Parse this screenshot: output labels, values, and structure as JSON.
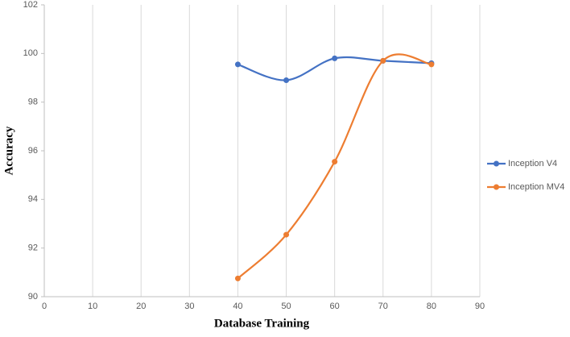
{
  "chart_data": {
    "type": "line",
    "x": [
      40,
      50,
      60,
      70,
      80
    ],
    "series": [
      {
        "name": "Inception V4",
        "color": "#4472c4",
        "values": [
          99.55,
          98.9,
          99.8,
          99.7,
          99.6
        ]
      },
      {
        "name": "Inception MV4",
        "color": "#ed7d31",
        "values": [
          90.75,
          92.55,
          95.55,
          99.7,
          99.55
        ]
      }
    ],
    "xlabel": "Database Training",
    "ylabel": "Accuracy",
    "xlim": [
      0,
      90
    ],
    "xticks": [
      0,
      10,
      20,
      30,
      40,
      50,
      60,
      70,
      80,
      90
    ],
    "ylim": [
      90,
      102
    ],
    "yticks": [
      90,
      92,
      94,
      96,
      98,
      100,
      102
    ],
    "grid": true,
    "smooth": true,
    "legend": "right"
  }
}
